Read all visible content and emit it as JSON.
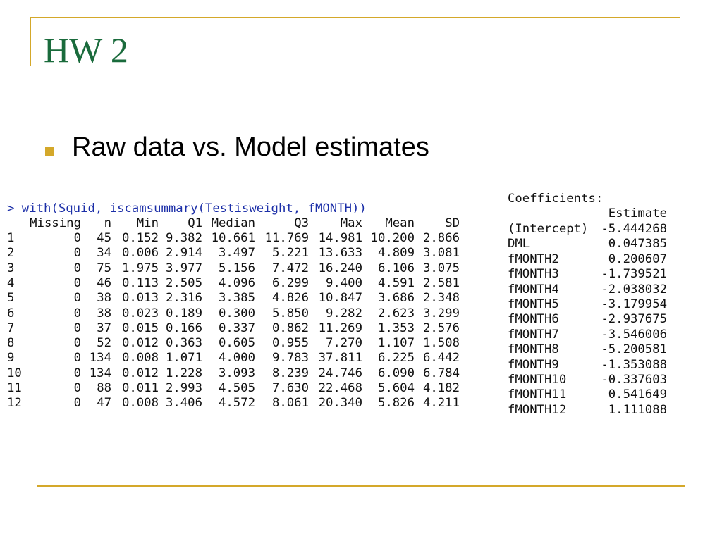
{
  "header": {
    "title": "HW 2"
  },
  "bullets": [
    "Raw data vs. Model estimates"
  ],
  "console": {
    "command": "> with(Squid, iscamsummary(Testisweight, fMONTH))",
    "columns": [
      "Missing",
      "n",
      "Min",
      "Q1",
      "Median",
      "Q3",
      "Max",
      "Mean",
      "SD"
    ],
    "rows": [
      [
        "1",
        "0",
        "45",
        "0.152",
        "9.382",
        "10.661",
        "11.769",
        "14.981",
        "10.200",
        "2.866"
      ],
      [
        "2",
        "0",
        "34",
        "0.006",
        "2.914",
        "3.497",
        "5.221",
        "13.633",
        "4.809",
        "3.081"
      ],
      [
        "3",
        "0",
        "75",
        "1.975",
        "3.977",
        "5.156",
        "7.472",
        "16.240",
        "6.106",
        "3.075"
      ],
      [
        "4",
        "0",
        "46",
        "0.113",
        "2.505",
        "4.096",
        "6.299",
        "9.400",
        "4.591",
        "2.581"
      ],
      [
        "5",
        "0",
        "38",
        "0.013",
        "2.316",
        "3.385",
        "4.826",
        "10.847",
        "3.686",
        "2.348"
      ],
      [
        "6",
        "0",
        "38",
        "0.023",
        "0.189",
        "0.300",
        "5.850",
        "9.282",
        "2.623",
        "3.299"
      ],
      [
        "7",
        "0",
        "37",
        "0.015",
        "0.166",
        "0.337",
        "0.862",
        "11.269",
        "1.353",
        "2.576"
      ],
      [
        "8",
        "0",
        "52",
        "0.012",
        "0.363",
        "0.605",
        "0.955",
        "7.270",
        "1.107",
        "1.508"
      ],
      [
        "9",
        "0",
        "134",
        "0.008",
        "1.071",
        "4.000",
        "9.783",
        "37.811",
        "6.225",
        "6.442"
      ],
      [
        "10",
        "0",
        "134",
        "0.012",
        "1.228",
        "3.093",
        "8.239",
        "24.746",
        "6.090",
        "6.784"
      ],
      [
        "11",
        "0",
        "88",
        "0.011",
        "2.993",
        "4.505",
        "7.630",
        "22.468",
        "5.604",
        "4.182"
      ],
      [
        "12",
        "0",
        "47",
        "0.008",
        "3.406",
        "4.572",
        "8.061",
        "20.340",
        "5.826",
        "4.211"
      ]
    ]
  },
  "coefficients": {
    "title": "Coefficients:",
    "column": "Estimate",
    "rows": [
      [
        "(Intercept)",
        "-5.444268"
      ],
      [
        "DML",
        "0.047385"
      ],
      [
        "fMONTH2",
        "0.200607"
      ],
      [
        "fMONTH3",
        "-1.739521"
      ],
      [
        "fMONTH4",
        "-2.038032"
      ],
      [
        "fMONTH5",
        "-3.179954"
      ],
      [
        "fMONTH6",
        "-2.937675"
      ],
      [
        "fMONTH7",
        "-3.546006"
      ],
      [
        "fMONTH8",
        "-5.200581"
      ],
      [
        "fMONTH9",
        "-1.353088"
      ],
      [
        "fMONTH10",
        "-0.337603"
      ],
      [
        "fMONTH11",
        "0.541649"
      ],
      [
        "fMONTH12",
        "1.111088"
      ]
    ]
  }
}
